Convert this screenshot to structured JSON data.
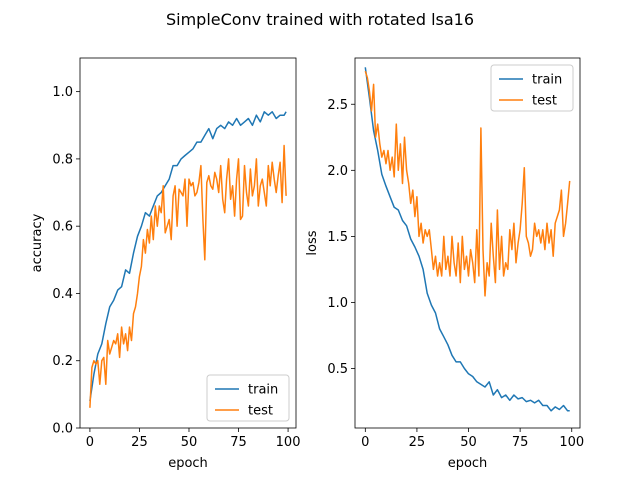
{
  "figure": {
    "title": "SimpleConv trained with rotated lsa16"
  },
  "colors": {
    "train": "#1f77b4",
    "test": "#ff7f0e"
  },
  "chart_data": [
    {
      "type": "line",
      "xlabel": "epoch",
      "ylabel": "accuracy",
      "xlim": [
        -5,
        104
      ],
      "ylim": [
        0.0,
        1.1
      ],
      "xticks": [
        0,
        25,
        50,
        75,
        100
      ],
      "yticks": [
        0.0,
        0.2,
        0.4,
        0.6,
        0.8,
        1.0
      ],
      "ytick_labels": [
        "0.0",
        "0.2",
        "0.4",
        "0.6",
        "0.8",
        "1.0"
      ],
      "grid": false,
      "legend": "lower-right",
      "series": [
        {
          "name": "train",
          "x": [
            0,
            2,
            4,
            6,
            8,
            10,
            12,
            14,
            16,
            18,
            20,
            22,
            24,
            26,
            28,
            30,
            32,
            34,
            36,
            38,
            40,
            42,
            44,
            46,
            48,
            50,
            52,
            54,
            56,
            58,
            60,
            62,
            64,
            66,
            68,
            70,
            72,
            74,
            76,
            78,
            80,
            82,
            84,
            86,
            88,
            90,
            92,
            94,
            96,
            98,
            99
          ],
          "y": [
            0.08,
            0.16,
            0.22,
            0.25,
            0.31,
            0.36,
            0.38,
            0.41,
            0.42,
            0.47,
            0.46,
            0.52,
            0.57,
            0.6,
            0.64,
            0.63,
            0.66,
            0.69,
            0.7,
            0.72,
            0.74,
            0.78,
            0.78,
            0.8,
            0.81,
            0.82,
            0.83,
            0.85,
            0.85,
            0.87,
            0.89,
            0.86,
            0.89,
            0.9,
            0.89,
            0.91,
            0.9,
            0.92,
            0.9,
            0.91,
            0.92,
            0.9,
            0.93,
            0.91,
            0.94,
            0.93,
            0.94,
            0.92,
            0.93,
            0.93,
            0.94
          ]
        },
        {
          "name": "test",
          "x": [
            0,
            1,
            2,
            3,
            4,
            5,
            6,
            7,
            8,
            9,
            10,
            11,
            12,
            13,
            14,
            15,
            16,
            17,
            18,
            19,
            20,
            21,
            22,
            23,
            24,
            25,
            26,
            27,
            28,
            29,
            30,
            31,
            32,
            33,
            34,
            35,
            36,
            37,
            38,
            39,
            40,
            41,
            42,
            43,
            44,
            45,
            46,
            47,
            48,
            49,
            50,
            51,
            52,
            53,
            54,
            55,
            56,
            57,
            58,
            59,
            60,
            61,
            62,
            63,
            64,
            65,
            66,
            67,
            68,
            69,
            70,
            71,
            72,
            73,
            74,
            75,
            76,
            77,
            78,
            79,
            80,
            81,
            82,
            83,
            84,
            85,
            86,
            87,
            88,
            89,
            90,
            91,
            92,
            93,
            94,
            95,
            96,
            97,
            98,
            99
          ],
          "y": [
            0.06,
            0.18,
            0.2,
            0.19,
            0.2,
            0.13,
            0.2,
            0.21,
            0.13,
            0.26,
            0.22,
            0.24,
            0.26,
            0.25,
            0.28,
            0.21,
            0.3,
            0.25,
            0.28,
            0.23,
            0.3,
            0.26,
            0.34,
            0.36,
            0.4,
            0.45,
            0.48,
            0.56,
            0.52,
            0.59,
            0.55,
            0.63,
            0.56,
            0.66,
            0.6,
            0.66,
            0.64,
            0.72,
            0.58,
            0.6,
            0.62,
            0.56,
            0.69,
            0.72,
            0.6,
            0.71,
            0.7,
            0.69,
            0.74,
            0.6,
            0.74,
            0.72,
            0.73,
            0.69,
            0.7,
            0.73,
            0.78,
            0.62,
            0.5,
            0.73,
            0.75,
            0.72,
            0.71,
            0.76,
            0.74,
            0.7,
            0.78,
            0.68,
            0.64,
            0.74,
            0.8,
            0.68,
            0.72,
            0.63,
            0.74,
            0.8,
            0.62,
            0.63,
            0.78,
            0.7,
            0.66,
            0.77,
            0.69,
            0.72,
            0.8,
            0.66,
            0.72,
            0.74,
            0.7,
            0.66,
            0.78,
            0.72,
            0.79,
            0.74,
            0.7,
            0.75,
            0.79,
            0.67,
            0.84,
            0.69
          ]
        }
      ]
    },
    {
      "type": "line",
      "xlabel": "epoch",
      "ylabel": "loss",
      "xlim": [
        -5,
        104
      ],
      "ylim": [
        0.05,
        2.85
      ],
      "xticks": [
        0,
        25,
        50,
        75,
        100
      ],
      "yticks": [
        0.5,
        1.0,
        1.5,
        2.0,
        2.5
      ],
      "ytick_labels": [
        "0.5",
        "1.0",
        "1.5",
        "2.0",
        "2.5"
      ],
      "grid": false,
      "legend": "upper-right",
      "series": [
        {
          "name": "train",
          "x": [
            0,
            2,
            4,
            6,
            8,
            10,
            12,
            14,
            16,
            18,
            20,
            22,
            24,
            26,
            28,
            30,
            32,
            34,
            36,
            38,
            40,
            42,
            44,
            46,
            48,
            50,
            52,
            54,
            56,
            58,
            60,
            62,
            64,
            66,
            68,
            70,
            72,
            74,
            76,
            78,
            80,
            82,
            84,
            86,
            88,
            90,
            92,
            94,
            96,
            98,
            99
          ],
          "y": [
            2.78,
            2.55,
            2.3,
            2.15,
            1.97,
            1.88,
            1.8,
            1.72,
            1.7,
            1.62,
            1.58,
            1.48,
            1.42,
            1.35,
            1.25,
            1.07,
            0.98,
            0.92,
            0.8,
            0.74,
            0.68,
            0.6,
            0.55,
            0.55,
            0.5,
            0.46,
            0.44,
            0.4,
            0.38,
            0.36,
            0.4,
            0.3,
            0.34,
            0.28,
            0.3,
            0.26,
            0.3,
            0.27,
            0.28,
            0.25,
            0.26,
            0.24,
            0.26,
            0.22,
            0.22,
            0.18,
            0.21,
            0.19,
            0.22,
            0.18,
            0.18
          ]
        },
        {
          "name": "test",
          "x": [
            0,
            1,
            2,
            3,
            4,
            5,
            6,
            7,
            8,
            9,
            10,
            11,
            12,
            13,
            14,
            15,
            16,
            17,
            18,
            19,
            20,
            21,
            22,
            23,
            24,
            25,
            26,
            27,
            28,
            29,
            30,
            31,
            32,
            33,
            34,
            35,
            36,
            37,
            38,
            39,
            40,
            41,
            42,
            43,
            44,
            45,
            46,
            47,
            48,
            49,
            50,
            51,
            52,
            53,
            54,
            55,
            56,
            57,
            58,
            59,
            60,
            61,
            62,
            63,
            64,
            65,
            66,
            67,
            68,
            69,
            70,
            71,
            72,
            73,
            74,
            75,
            76,
            77,
            78,
            79,
            80,
            81,
            82,
            83,
            84,
            85,
            86,
            87,
            88,
            89,
            90,
            91,
            92,
            93,
            94,
            95,
            96,
            97,
            98,
            99
          ],
          "y": [
            2.75,
            2.7,
            2.6,
            2.45,
            2.65,
            2.25,
            2.35,
            2.2,
            2.1,
            2.15,
            2.05,
            2.15,
            2.0,
            2.1,
            1.95,
            2.35,
            2.0,
            2.2,
            1.9,
            2.25,
            2.0,
            1.9,
            1.75,
            1.85,
            1.65,
            1.8,
            1.5,
            1.6,
            1.45,
            1.55,
            1.5,
            1.55,
            1.4,
            1.25,
            1.35,
            1.2,
            1.3,
            1.2,
            1.5,
            1.25,
            1.35,
            1.2,
            1.5,
            1.3,
            1.2,
            1.45,
            1.15,
            1.5,
            1.25,
            1.35,
            1.2,
            1.4,
            1.3,
            1.15,
            1.55,
            1.2,
            2.32,
            1.4,
            1.05,
            1.3,
            1.2,
            1.6,
            1.35,
            1.15,
            1.7,
            1.25,
            1.5,
            1.2,
            1.3,
            1.25,
            1.55,
            1.4,
            1.6,
            1.3,
            1.45,
            1.55,
            1.75,
            2.02,
            1.5,
            1.45,
            1.35,
            1.4,
            1.6,
            1.5,
            1.55,
            1.45,
            1.55,
            1.4,
            1.6,
            1.45,
            1.55,
            1.35,
            1.6,
            1.65,
            1.7,
            1.85,
            1.5,
            1.6,
            1.75,
            1.92
          ]
        }
      ]
    }
  ]
}
